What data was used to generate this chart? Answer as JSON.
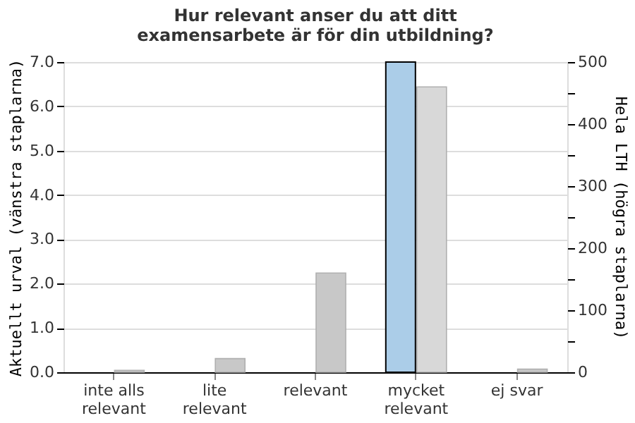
{
  "chart_data": {
    "type": "bar",
    "title": "Hur relevant anser du att ditt\nexamensarbete är för din utbildning?",
    "categories": [
      "inte alls\nrelevant",
      "lite\nrelevant",
      "relevant",
      "mycket\nrelevant",
      "ej svar"
    ],
    "ylabel": "Aktuellt urval (vänstra staplarna)",
    "y2label": "Hela LTH (högra staplarna)",
    "series": [
      {
        "color": "#abcde8",
        "values": [
          null,
          null,
          null,
          7,
          null
        ]
      },
      {
        "axis": "y2",
        "colors": [
          "#c8c8c8",
          "#c8c8c8",
          "#c8c8c8",
          "#d8d8d8",
          "#c8c8c8"
        ],
        "values": [
          3,
          22,
          160,
          460,
          5
        ]
      }
    ],
    "ylim": [
      0,
      7
    ],
    "yticks": [
      {
        "value": 0,
        "label": "0.0"
      },
      {
        "value": 1,
        "label": "1.0"
      },
      {
        "value": 2,
        "label": "2.0"
      },
      {
        "value": 3,
        "label": "3.0"
      },
      {
        "value": 4,
        "label": "4.0"
      },
      {
        "value": 5,
        "label": "5.0"
      },
      {
        "value": 6,
        "label": "6.0"
      },
      {
        "value": 7,
        "label": "7.0"
      }
    ],
    "y2lim": [
      0,
      500
    ],
    "y2ticks": [
      0,
      {
        "value": 50,
        "label": null
      },
      100,
      {
        "value": 150,
        "label": null
      },
      200,
      {
        "value": 250,
        "label": null
      },
      300,
      {
        "value": 350,
        "label": null
      },
      400,
      {
        "value": 450,
        "label": null
      },
      500
    ],
    "grid": "y"
  }
}
